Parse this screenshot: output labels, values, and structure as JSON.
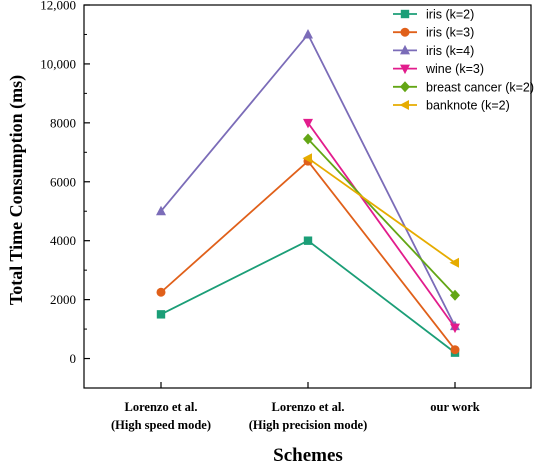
{
  "chart_data": {
    "type": "line",
    "title": "",
    "xlabel": "Schemes",
    "ylabel": "Total Time Consumption (ms)",
    "categories": [
      [
        "Lorenzo et al.",
        "(High speed mode)"
      ],
      [
        "Lorenzo et al.",
        "(High precision mode)"
      ],
      [
        "our work"
      ]
    ],
    "yticks": [
      "0",
      "2000",
      "4000",
      "6000",
      "8000",
      "10,000",
      "12,000"
    ],
    "ylim": [
      -1000,
      12000
    ],
    "legend_position": "top-right",
    "series": [
      {
        "name": "iris (k=2)",
        "color": "#1b9e77",
        "marker": "square",
        "values": [
          1500,
          4000,
          200
        ]
      },
      {
        "name": "iris (k=3)",
        "color": "#e0601a",
        "marker": "circle",
        "values": [
          2250,
          6700,
          300
        ]
      },
      {
        "name": "iris (k=4)",
        "color": "#7b6cb8",
        "marker": "triangle-up",
        "values": [
          5000,
          11000,
          1100
        ]
      },
      {
        "name": "wine (k=3)",
        "color": "#e21c8c",
        "marker": "triangle-down",
        "values": [
          null,
          8000,
          1050
        ]
      },
      {
        "name": "breast cancer (k=2)",
        "color": "#63a615",
        "marker": "diamond",
        "values": [
          null,
          7450,
          2150
        ]
      },
      {
        "name": "banknote (k=2)",
        "color": "#e6ac00",
        "marker": "triangle-left",
        "values": [
          null,
          6800,
          3250
        ]
      }
    ]
  }
}
